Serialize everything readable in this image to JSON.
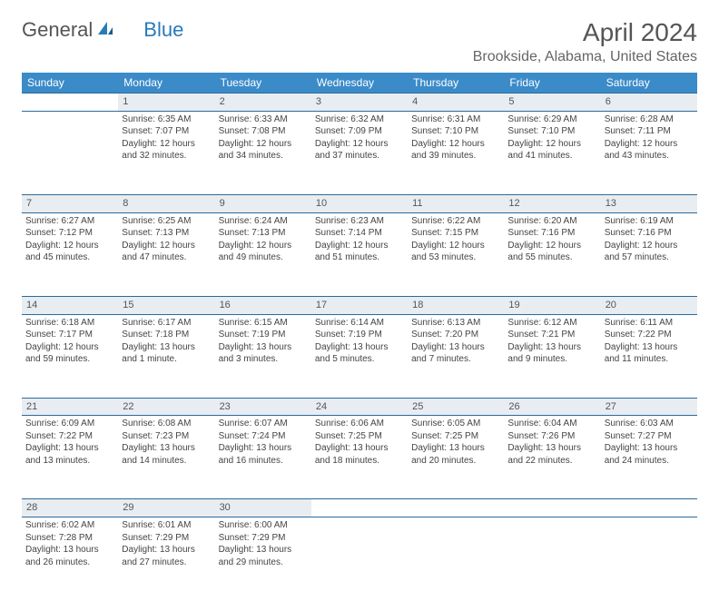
{
  "logo": {
    "text1": "General",
    "text2": "Blue"
  },
  "title": "April 2024",
  "location": "Brookside, Alabama, United States",
  "colors": {
    "header_bg": "#3b8bc9",
    "header_text": "#ffffff",
    "daynum_bg": "#e8edf1",
    "border": "#2a6aa0",
    "body_text": "#444444",
    "title_text": "#555555",
    "logo_gray": "#555555",
    "logo_blue": "#2a7ab8"
  },
  "fonts": {
    "title_size": 28,
    "location_size": 16,
    "header_size": 12,
    "cell_size": 10,
    "daynum_size": 11
  },
  "weekdays": [
    "Sunday",
    "Monday",
    "Tuesday",
    "Wednesday",
    "Thursday",
    "Friday",
    "Saturday"
  ],
  "weeks": [
    {
      "nums": [
        "",
        "1",
        "2",
        "3",
        "4",
        "5",
        "6"
      ],
      "cells": [
        null,
        {
          "sunrise": "Sunrise: 6:35 AM",
          "sunset": "Sunset: 7:07 PM",
          "day1": "Daylight: 12 hours",
          "day2": "and 32 minutes."
        },
        {
          "sunrise": "Sunrise: 6:33 AM",
          "sunset": "Sunset: 7:08 PM",
          "day1": "Daylight: 12 hours",
          "day2": "and 34 minutes."
        },
        {
          "sunrise": "Sunrise: 6:32 AM",
          "sunset": "Sunset: 7:09 PM",
          "day1": "Daylight: 12 hours",
          "day2": "and 37 minutes."
        },
        {
          "sunrise": "Sunrise: 6:31 AM",
          "sunset": "Sunset: 7:10 PM",
          "day1": "Daylight: 12 hours",
          "day2": "and 39 minutes."
        },
        {
          "sunrise": "Sunrise: 6:29 AM",
          "sunset": "Sunset: 7:10 PM",
          "day1": "Daylight: 12 hours",
          "day2": "and 41 minutes."
        },
        {
          "sunrise": "Sunrise: 6:28 AM",
          "sunset": "Sunset: 7:11 PM",
          "day1": "Daylight: 12 hours",
          "day2": "and 43 minutes."
        }
      ]
    },
    {
      "nums": [
        "7",
        "8",
        "9",
        "10",
        "11",
        "12",
        "13"
      ],
      "cells": [
        {
          "sunrise": "Sunrise: 6:27 AM",
          "sunset": "Sunset: 7:12 PM",
          "day1": "Daylight: 12 hours",
          "day2": "and 45 minutes."
        },
        {
          "sunrise": "Sunrise: 6:25 AM",
          "sunset": "Sunset: 7:13 PM",
          "day1": "Daylight: 12 hours",
          "day2": "and 47 minutes."
        },
        {
          "sunrise": "Sunrise: 6:24 AM",
          "sunset": "Sunset: 7:13 PM",
          "day1": "Daylight: 12 hours",
          "day2": "and 49 minutes."
        },
        {
          "sunrise": "Sunrise: 6:23 AM",
          "sunset": "Sunset: 7:14 PM",
          "day1": "Daylight: 12 hours",
          "day2": "and 51 minutes."
        },
        {
          "sunrise": "Sunrise: 6:22 AM",
          "sunset": "Sunset: 7:15 PM",
          "day1": "Daylight: 12 hours",
          "day2": "and 53 minutes."
        },
        {
          "sunrise": "Sunrise: 6:20 AM",
          "sunset": "Sunset: 7:16 PM",
          "day1": "Daylight: 12 hours",
          "day2": "and 55 minutes."
        },
        {
          "sunrise": "Sunrise: 6:19 AM",
          "sunset": "Sunset: 7:16 PM",
          "day1": "Daylight: 12 hours",
          "day2": "and 57 minutes."
        }
      ]
    },
    {
      "nums": [
        "14",
        "15",
        "16",
        "17",
        "18",
        "19",
        "20"
      ],
      "cells": [
        {
          "sunrise": "Sunrise: 6:18 AM",
          "sunset": "Sunset: 7:17 PM",
          "day1": "Daylight: 12 hours",
          "day2": "and 59 minutes."
        },
        {
          "sunrise": "Sunrise: 6:17 AM",
          "sunset": "Sunset: 7:18 PM",
          "day1": "Daylight: 13 hours",
          "day2": "and 1 minute."
        },
        {
          "sunrise": "Sunrise: 6:15 AM",
          "sunset": "Sunset: 7:19 PM",
          "day1": "Daylight: 13 hours",
          "day2": "and 3 minutes."
        },
        {
          "sunrise": "Sunrise: 6:14 AM",
          "sunset": "Sunset: 7:19 PM",
          "day1": "Daylight: 13 hours",
          "day2": "and 5 minutes."
        },
        {
          "sunrise": "Sunrise: 6:13 AM",
          "sunset": "Sunset: 7:20 PM",
          "day1": "Daylight: 13 hours",
          "day2": "and 7 minutes."
        },
        {
          "sunrise": "Sunrise: 6:12 AM",
          "sunset": "Sunset: 7:21 PM",
          "day1": "Daylight: 13 hours",
          "day2": "and 9 minutes."
        },
        {
          "sunrise": "Sunrise: 6:11 AM",
          "sunset": "Sunset: 7:22 PM",
          "day1": "Daylight: 13 hours",
          "day2": "and 11 minutes."
        }
      ]
    },
    {
      "nums": [
        "21",
        "22",
        "23",
        "24",
        "25",
        "26",
        "27"
      ],
      "cells": [
        {
          "sunrise": "Sunrise: 6:09 AM",
          "sunset": "Sunset: 7:22 PM",
          "day1": "Daylight: 13 hours",
          "day2": "and 13 minutes."
        },
        {
          "sunrise": "Sunrise: 6:08 AM",
          "sunset": "Sunset: 7:23 PM",
          "day1": "Daylight: 13 hours",
          "day2": "and 14 minutes."
        },
        {
          "sunrise": "Sunrise: 6:07 AM",
          "sunset": "Sunset: 7:24 PM",
          "day1": "Daylight: 13 hours",
          "day2": "and 16 minutes."
        },
        {
          "sunrise": "Sunrise: 6:06 AM",
          "sunset": "Sunset: 7:25 PM",
          "day1": "Daylight: 13 hours",
          "day2": "and 18 minutes."
        },
        {
          "sunrise": "Sunrise: 6:05 AM",
          "sunset": "Sunset: 7:25 PM",
          "day1": "Daylight: 13 hours",
          "day2": "and 20 minutes."
        },
        {
          "sunrise": "Sunrise: 6:04 AM",
          "sunset": "Sunset: 7:26 PM",
          "day1": "Daylight: 13 hours",
          "day2": "and 22 minutes."
        },
        {
          "sunrise": "Sunrise: 6:03 AM",
          "sunset": "Sunset: 7:27 PM",
          "day1": "Daylight: 13 hours",
          "day2": "and 24 minutes."
        }
      ]
    },
    {
      "nums": [
        "28",
        "29",
        "30",
        "",
        "",
        "",
        ""
      ],
      "cells": [
        {
          "sunrise": "Sunrise: 6:02 AM",
          "sunset": "Sunset: 7:28 PM",
          "day1": "Daylight: 13 hours",
          "day2": "and 26 minutes."
        },
        {
          "sunrise": "Sunrise: 6:01 AM",
          "sunset": "Sunset: 7:29 PM",
          "day1": "Daylight: 13 hours",
          "day2": "and 27 minutes."
        },
        {
          "sunrise": "Sunrise: 6:00 AM",
          "sunset": "Sunset: 7:29 PM",
          "day1": "Daylight: 13 hours",
          "day2": "and 29 minutes."
        },
        null,
        null,
        null,
        null
      ]
    }
  ]
}
